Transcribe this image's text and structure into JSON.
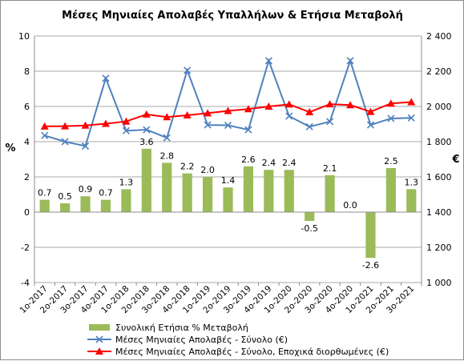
{
  "chart_data": {
    "type": "bar",
    "title": "Μέσες Μηνιαίες Απολαβές Υπαλλήλων & Ετήσια Μεταβολή",
    "ylabel_left": "%",
    "ylabel_right": "€",
    "ylim_left": [
      -4,
      10
    ],
    "ylim_right": [
      1000,
      2400
    ],
    "yticks_left": [
      "-4",
      "-2",
      "0",
      "2",
      "4",
      "6",
      "8",
      "10"
    ],
    "yticks_right": [
      "1 000",
      "1 200",
      "1 400",
      "1 600",
      "1 800",
      "2 000",
      "2 200",
      "2 400"
    ],
    "categories": [
      "1ο-2017",
      "2ο-2017",
      "3ο-2017",
      "4ο-2017",
      "1ο-2018",
      "2ο-2018",
      "3ο-2018",
      "4ο-2018",
      "1ο-2019",
      "2ο-2019",
      "3ο-2019",
      "4ο-2019",
      "1ο-2020",
      "2ο-2020",
      "3ο-2020",
      "4ο-2020",
      "1ο-2021",
      "2ο-2021",
      "3ο-2021"
    ],
    "series": [
      {
        "name": "Συνολική Ετήσια % Μεταβολή",
        "kind": "bar",
        "axis": "left",
        "color": "#9bbb59",
        "values": [
          0.7,
          0.5,
          0.9,
          0.7,
          1.3,
          3.6,
          2.8,
          2.2,
          2.0,
          1.4,
          2.6,
          2.4,
          2.4,
          -0.5,
          2.1,
          0.0,
          -2.6,
          2.5,
          1.3
        ],
        "labels": [
          "0.7",
          "0.5",
          "0.9",
          "0.7",
          "1.3",
          "3.6",
          "2.8",
          "2.2",
          "2.0",
          "1.4",
          "2.6",
          "2.4",
          "2.4",
          "-0.5",
          "2.1",
          "0.0",
          "-2.6",
          "2.5",
          "1.3"
        ]
      },
      {
        "name": "Μέσες Μηνιαίες Απολαβές - Σύνολο (€)",
        "kind": "line",
        "marker": "x",
        "axis": "right",
        "color": "#4f81bd",
        "values": [
          1835,
          1800,
          1775,
          2160,
          1862,
          1868,
          1822,
          2205,
          1895,
          1893,
          1868,
          2260,
          1945,
          1885,
          1914,
          2260,
          1895,
          1932,
          1935
        ]
      },
      {
        "name": "Μέσες Μηνιαίες Απολαβές - Σύνολο, Εποχικά διορθωμένες (€)",
        "kind": "line",
        "marker": "triangle",
        "axis": "right",
        "color": "#ff0000",
        "values": [
          1887,
          1888,
          1892,
          1902,
          1915,
          1955,
          1940,
          1950,
          1962,
          1975,
          1985,
          2000,
          2012,
          1968,
          2013,
          2008,
          1970,
          2017,
          2025
        ]
      }
    ],
    "grid": "horizontal",
    "legend_position": "bottom-center"
  }
}
